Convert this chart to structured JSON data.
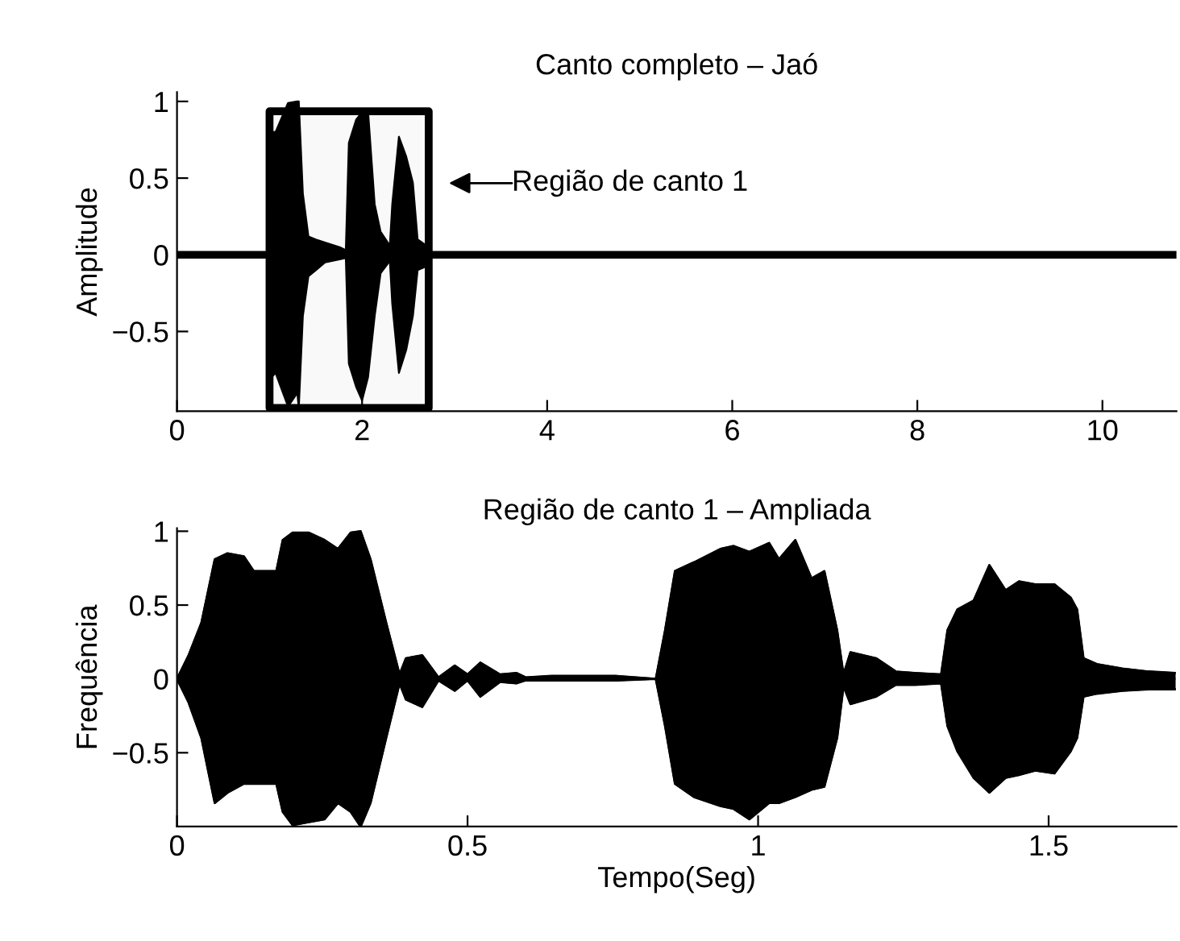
{
  "chart_data": [
    {
      "type": "line",
      "title": "Canto completo – Jaó",
      "ylabel": "Amplitude",
      "xlim": [
        0,
        10.8
      ],
      "xticks": [
        0,
        2,
        4,
        6,
        8,
        10
      ],
      "ylim": [
        -1.02,
        1.06
      ],
      "yticks": [
        -0.5,
        0,
        0.5,
        1
      ],
      "grid": false,
      "legend": false,
      "annotations": [
        "Região de canto 1"
      ],
      "bands": [
        {
          "axis": "x",
          "from": 1.0,
          "to": 2.72,
          "color": "#000000"
        }
      ],
      "series": [
        {
          "color": "#000000",
          "x": [
            0,
            0.99,
            1.0,
            1.02,
            1.065,
            1.2,
            1.3,
            1.316,
            1.36,
            1.42,
            1.5,
            1.6,
            1.757,
            1.824,
            1.857,
            1.935,
            2.0,
            2.064,
            2.136,
            2.2,
            2.3,
            2.326,
            2.398,
            2.477,
            2.549,
            2.6,
            2.717,
            2.75,
            10.78
          ],
          "values": [
            0,
            0,
            0,
            0,
            0,
            0,
            0,
            0,
            0,
            0,
            0,
            0,
            0,
            0,
            0,
            0,
            0,
            0,
            0,
            0,
            0,
            0,
            0,
            0,
            0,
            0,
            0,
            0,
            0
          ],
          "upper": [
            0,
            0,
            0,
            0.8,
            0.8,
            0.99,
            1.0,
            1.0,
            0.4,
            0.12,
            0.1,
            0.08,
            0.05,
            0.03,
            0.73,
            0.88,
            0.93,
            0.94,
            0.33,
            0.15,
            0.06,
            0.33,
            0.77,
            0.64,
            0.47,
            0.1,
            0.05,
            0,
            0
          ],
          "lower": [
            0,
            0,
            0,
            -0.8,
            -0.77,
            -0.99,
            -0.9,
            -1.0,
            -0.4,
            -0.14,
            -0.1,
            -0.05,
            -0.03,
            -0.02,
            -0.71,
            -0.86,
            -0.95,
            -0.8,
            -0.4,
            -0.12,
            -0.04,
            -0.32,
            -0.77,
            -0.62,
            -0.4,
            -0.1,
            -0.07,
            0,
            0
          ]
        }
      ]
    },
    {
      "type": "line",
      "title": "Região de canto 1 – Ampliada",
      "xlabel": "Tempo(Seg)",
      "ylabel": "Frequência",
      "xlim": [
        0,
        1.72
      ],
      "xticks": [
        0,
        0.5,
        1,
        1.5
      ],
      "ylim": [
        -1.0,
        1.02
      ],
      "yticks": [
        -0.5,
        0,
        0.5,
        1
      ],
      "grid": false,
      "legend": false,
      "series": [
        {
          "color": "#000000",
          "x": [
            0,
            0.02,
            0.042,
            0.065,
            0.087,
            0.115,
            0.132,
            0.171,
            0.182,
            0.199,
            0.227,
            0.254,
            0.277,
            0.299,
            0.316,
            0.333,
            0.36,
            0.383,
            0.394,
            0.422,
            0.45,
            0.478,
            0.5,
            0.522,
            0.556,
            0.584,
            0.6,
            0.645,
            0.757,
            0.824,
            0.84,
            0.857,
            0.89,
            0.935,
            0.958,
            0.985,
            1.019,
            1.036,
            1.064,
            1.092,
            1.114,
            1.136,
            1.147,
            1.159,
            1.203,
            1.237,
            1.27,
            1.315,
            1.326,
            1.343,
            1.371,
            1.398,
            1.426,
            1.449,
            1.477,
            1.51,
            1.538,
            1.549,
            1.56,
            1.583,
            1.627,
            1.672,
            1.717
          ],
          "type": "area",
          "values": [
            0,
            0.16,
            0.38,
            0.81,
            0.85,
            0.83,
            0.73,
            0.73,
            0.94,
            0.99,
            0.99,
            0.94,
            0.88,
            0.99,
            1.0,
            0.81,
            0.38,
            0.03,
            0.14,
            0.16,
            0.01,
            0.09,
            0.03,
            0.11,
            0.03,
            0.04,
            0.01,
            0.02,
            0.02,
            0,
            0.33,
            0.73,
            0.79,
            0.88,
            0.9,
            0.86,
            0.92,
            0.81,
            0.94,
            0.68,
            0.73,
            0.33,
            0.03,
            0.18,
            0.14,
            0.05,
            0.04,
            0.03,
            0.33,
            0.47,
            0.53,
            0.77,
            0.6,
            0.66,
            0.64,
            0.64,
            0.55,
            0.47,
            0.14,
            0.1,
            0.07,
            0.05,
            0.04
          ]
        },
        {
          "color": "#000000",
          "type": "area",
          "x": [
            0,
            0.02,
            0.042,
            0.065,
            0.087,
            0.115,
            0.132,
            0.171,
            0.182,
            0.199,
            0.227,
            0.254,
            0.277,
            0.299,
            0.316,
            0.333,
            0.36,
            0.383,
            0.394,
            0.422,
            0.45,
            0.478,
            0.5,
            0.522,
            0.556,
            0.584,
            0.6,
            0.645,
            0.757,
            0.824,
            0.84,
            0.857,
            0.89,
            0.935,
            0.958,
            0.985,
            1.019,
            1.036,
            1.064,
            1.092,
            1.114,
            1.136,
            1.147,
            1.159,
            1.203,
            1.237,
            1.27,
            1.315,
            1.326,
            1.343,
            1.371,
            1.398,
            1.426,
            1.449,
            1.477,
            1.51,
            1.538,
            1.549,
            1.56,
            1.583,
            1.627,
            1.672,
            1.717
          ],
          "values": [
            0,
            -0.16,
            -0.4,
            -0.84,
            -0.77,
            -0.71,
            -0.71,
            -0.71,
            -0.9,
            -0.99,
            -0.97,
            -0.95,
            -0.84,
            -0.9,
            -1.0,
            -0.84,
            -0.4,
            -0.03,
            -0.14,
            -0.19,
            -0.01,
            -0.08,
            -0.01,
            -0.12,
            -0.02,
            -0.03,
            -0.01,
            -0.01,
            -0.01,
            0,
            -0.32,
            -0.71,
            -0.8,
            -0.86,
            -0.88,
            -0.95,
            -0.84,
            -0.84,
            -0.8,
            -0.75,
            -0.73,
            -0.4,
            -0.05,
            -0.17,
            -0.12,
            -0.04,
            -0.04,
            -0.03,
            -0.32,
            -0.49,
            -0.67,
            -0.77,
            -0.67,
            -0.65,
            -0.62,
            -0.64,
            -0.49,
            -0.4,
            -0.12,
            -0.1,
            -0.08,
            -0.07,
            -0.07
          ]
        }
      ]
    }
  ]
}
